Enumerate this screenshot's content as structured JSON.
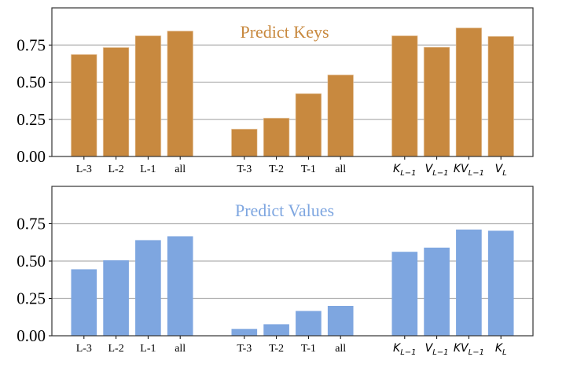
{
  "chart_data": [
    {
      "type": "bar",
      "title": "Predict Keys",
      "color": "#C8893F",
      "categories": [
        "L-3",
        "L-2",
        "L-1",
        "all",
        "T-3",
        "T-2",
        "T-1",
        "all",
        "K_{L-1}",
        "V_{L-1}",
        "KV_{L-1}",
        "V_L"
      ],
      "values": [
        0.686,
        0.733,
        0.812,
        0.844,
        0.184,
        0.258,
        0.423,
        0.549,
        0.812,
        0.735,
        0.865,
        0.808
      ],
      "ylim": [
        0,
        1.0
      ],
      "yticks": [
        "0.00",
        "0.25",
        "0.50",
        "0.75"
      ],
      "grid": "y",
      "xlabel": "",
      "ylabel": ""
    },
    {
      "type": "bar",
      "title": "Predict Values",
      "color": "#7EA6E0",
      "categories": [
        "L-3",
        "L-2",
        "L-1",
        "all",
        "T-3",
        "T-2",
        "T-1",
        "all",
        "K_{L-1}",
        "V_{L-1}",
        "KV_{L-1}",
        "K_L"
      ],
      "values": [
        0.445,
        0.505,
        0.64,
        0.666,
        0.046,
        0.077,
        0.166,
        0.2,
        0.562,
        0.59,
        0.711,
        0.703
      ],
      "ylim": [
        0,
        1.0
      ],
      "yticks": [
        "0.00",
        "0.25",
        "0.50",
        "0.75"
      ],
      "grid": "y",
      "xlabel": "",
      "ylabel": ""
    }
  ]
}
